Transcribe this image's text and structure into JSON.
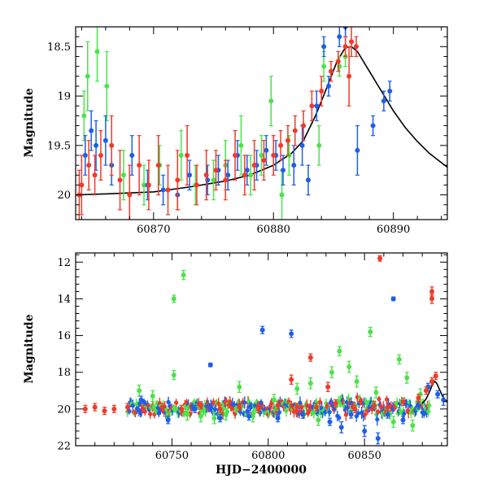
{
  "chart_data": [
    {
      "type": "scatter",
      "title": "",
      "xlabel": "",
      "ylabel": "Magnitude",
      "xlim": [
        60863.5,
        60894.5
      ],
      "ylim": [
        20.25,
        18.3
      ],
      "y_inverted": true,
      "xticks": [
        60870,
        60880,
        60890
      ],
      "yticks": [
        18.5,
        19,
        19.5,
        20
      ],
      "ytick_labels": [
        "18.5",
        "19",
        "19.5",
        "20"
      ],
      "xtick_labels": [
        "60870",
        "60880",
        "60890"
      ],
      "colors": {
        "red": "#f03a2a",
        "blue": "#1e5ee8",
        "green": "#4be34b",
        "model": "#000000"
      },
      "series": [
        {
          "color": "green",
          "points": [
            [
              60864.2,
              19.2,
              0.25
            ],
            [
              60864.5,
              18.8,
              0.35
            ],
            [
              60865.3,
              18.55,
              0.3
            ],
            [
              60866.1,
              18.9,
              0.35
            ],
            [
              60867.5,
              19.8,
              0.25
            ],
            [
              60869.2,
              19.9,
              0.2
            ],
            [
              60870.5,
              19.7,
              0.2
            ],
            [
              60872.3,
              19.6,
              0.25
            ],
            [
              60873.5,
              19.9,
              0.2
            ],
            [
              60875.0,
              19.85,
              0.2
            ],
            [
              60876.0,
              19.7,
              0.25
            ],
            [
              60877.3,
              19.5,
              0.3
            ],
            [
              60878.1,
              19.8,
              0.2
            ],
            [
              60879.0,
              19.6,
              0.2
            ],
            [
              60879.8,
              19.05,
              0.25
            ],
            [
              60880.7,
              20.0,
              0.25
            ],
            [
              60881.3,
              19.6,
              0.2
            ],
            [
              60883.8,
              19.5,
              0.2
            ],
            [
              60884.2,
              18.7,
              0.15
            ],
            [
              60885.5,
              18.7,
              0.1
            ],
            [
              60886.0,
              18.6,
              0.1
            ]
          ]
        },
        {
          "color": "blue",
          "points": [
            [
              60864.3,
              19.6,
              0.2
            ],
            [
              60864.8,
              19.35,
              0.2
            ],
            [
              60865.2,
              19.5,
              0.25
            ],
            [
              60866.0,
              19.45,
              0.25
            ],
            [
              60866.5,
              19.7,
              0.2
            ],
            [
              60868.2,
              19.6,
              0.2
            ],
            [
              60869.5,
              19.9,
              0.15
            ],
            [
              60870.8,
              19.95,
              0.15
            ],
            [
              60872.0,
              20.0,
              0.15
            ],
            [
              60873.0,
              19.8,
              0.15
            ],
            [
              60874.5,
              19.85,
              0.15
            ],
            [
              60875.4,
              19.75,
              0.15
            ],
            [
              60876.2,
              19.8,
              0.15
            ],
            [
              60877.0,
              19.6,
              0.15
            ],
            [
              60877.8,
              19.75,
              0.15
            ],
            [
              60878.6,
              19.7,
              0.15
            ],
            [
              60879.4,
              19.55,
              0.15
            ],
            [
              60880.2,
              19.6,
              0.15
            ],
            [
              60880.8,
              19.75,
              0.15
            ],
            [
              60881.7,
              19.7,
              0.2
            ],
            [
              60882.4,
              19.5,
              0.2
            ],
            [
              60882.9,
              19.85,
              0.15
            ],
            [
              60883.6,
              19.1,
              0.15
            ],
            [
              60884.2,
              18.5,
              0.1
            ],
            [
              60884.6,
              18.9,
              0.1
            ],
            [
              60885.5,
              18.4,
              0.1
            ],
            [
              60886.0,
              18.3,
              0.1
            ],
            [
              60887.0,
              19.55,
              0.25
            ],
            [
              60888.3,
              19.3,
              0.1
            ],
            [
              60889.2,
              19.05,
              0.1
            ],
            [
              60889.7,
              18.95,
              0.1
            ]
          ]
        },
        {
          "color": "red",
          "points": [
            [
              60863.8,
              20.0,
              0.25
            ],
            [
              60864.0,
              19.9,
              0.3
            ],
            [
              60864.6,
              19.7,
              0.25
            ],
            [
              60865.1,
              19.8,
              0.2
            ],
            [
              60865.6,
              19.6,
              0.25
            ],
            [
              60866.5,
              19.5,
              0.3
            ],
            [
              60867.2,
              19.85,
              0.3
            ],
            [
              60868.0,
              20.0,
              0.3
            ],
            [
              60868.8,
              19.7,
              0.3
            ],
            [
              60869.6,
              19.9,
              0.25
            ],
            [
              60870.4,
              19.7,
              0.3
            ],
            [
              60871.2,
              19.95,
              0.25
            ],
            [
              60872.0,
              19.85,
              0.3
            ],
            [
              60872.8,
              19.6,
              0.3
            ],
            [
              60873.6,
              19.9,
              0.2
            ],
            [
              60874.4,
              19.8,
              0.25
            ],
            [
              60875.2,
              19.75,
              0.2
            ],
            [
              60876.0,
              19.85,
              0.2
            ],
            [
              60876.8,
              19.6,
              0.25
            ],
            [
              60877.6,
              19.8,
              0.2
            ],
            [
              60878.4,
              19.7,
              0.25
            ],
            [
              60879.2,
              19.65,
              0.2
            ],
            [
              60880.0,
              19.6,
              0.2
            ],
            [
              60880.6,
              19.5,
              0.15
            ],
            [
              60881.2,
              19.45,
              0.15
            ],
            [
              60881.8,
              19.35,
              0.15
            ],
            [
              60882.5,
              19.3,
              0.15
            ],
            [
              60883.2,
              19.1,
              0.15
            ],
            [
              60884.0,
              18.95,
              0.15
            ],
            [
              60884.8,
              18.75,
              0.1
            ],
            [
              60885.4,
              18.65,
              0.1
            ],
            [
              60886.0,
              18.5,
              0.1
            ],
            [
              60886.5,
              18.45,
              0.15
            ],
            [
              60886.9,
              18.5,
              0.1
            ],
            [
              60886.3,
              18.8,
              0.3
            ]
          ]
        }
      ],
      "model_curve": {
        "color": "model",
        "points": [
          [
            60863.5,
            20.0
          ],
          [
            60866,
            19.99
          ],
          [
            60870,
            19.97
          ],
          [
            60873,
            19.92
          ],
          [
            60876,
            19.86
          ],
          [
            60878,
            19.8
          ],
          [
            60880,
            19.7
          ],
          [
            60881.5,
            19.58
          ],
          [
            60882.5,
            19.45
          ],
          [
            60883.5,
            19.2
          ],
          [
            60884.5,
            18.9
          ],
          [
            60885.3,
            18.65
          ],
          [
            60886.0,
            18.51
          ],
          [
            60886.5,
            18.5
          ],
          [
            60887.0,
            18.55
          ],
          [
            60888.0,
            18.75
          ],
          [
            60889.0,
            18.95
          ],
          [
            60890.0,
            19.15
          ],
          [
            60891.0,
            19.32
          ],
          [
            60892.0,
            19.46
          ],
          [
            60893.0,
            19.58
          ],
          [
            60894.5,
            19.72
          ]
        ]
      }
    },
    {
      "type": "scatter",
      "title": "",
      "xlabel": "HJD−2400000",
      "ylabel": "Magnitude",
      "xlim": [
        60700,
        60893
      ],
      "ylim": [
        22,
        11.5
      ],
      "y_inverted": true,
      "xticks": [
        60750,
        60800,
        60850
      ],
      "yticks": [
        12,
        14,
        16,
        18,
        20,
        22
      ],
      "ytick_labels": [
        "12",
        "14",
        "16",
        "18",
        "20",
        "22"
      ],
      "xtick_labels": [
        "60750",
        "60800",
        "60850"
      ],
      "colors": {
        "red": "#f03a2a",
        "blue": "#1e5ee8",
        "green": "#4be34b",
        "model": "#000000"
      },
      "series": [
        {
          "color": "green",
          "points": [
            [
              60751,
              14.0,
              0.2
            ],
            [
              60751,
              18.15,
              0.25
            ],
            [
              60756,
              12.7,
              0.25
            ],
            [
              60733,
              19.0,
              0.3
            ],
            [
              60740,
              19.3,
              0.3
            ],
            [
              60748,
              20.5,
              0.3
            ],
            [
              60758,
              20.3,
              0.3
            ],
            [
              60765,
              20.4,
              0.3
            ],
            [
              60772,
              20.5,
              0.3
            ],
            [
              60778,
              20.3,
              0.3
            ],
            [
              60785,
              18.8,
              0.3
            ],
            [
              60792,
              20.4,
              0.3
            ],
            [
              60803,
              19.5,
              0.3
            ],
            [
              60815,
              18.9,
              0.3
            ],
            [
              60822,
              18.6,
              0.3
            ],
            [
              60826,
              20.6,
              0.3
            ],
            [
              60833,
              18.0,
              0.3
            ],
            [
              60837,
              16.85,
              0.25
            ],
            [
              60842,
              17.7,
              0.3
            ],
            [
              60846,
              18.5,
              0.3
            ],
            [
              60853,
              15.8,
              0.25
            ],
            [
              60856,
              19.1,
              0.3
            ],
            [
              60865,
              20.7,
              0.3
            ],
            [
              60868,
              17.3,
              0.25
            ],
            [
              60872,
              18.3,
              0.3
            ],
            [
              60875,
              20.9,
              0.3
            ],
            [
              60879,
              19.2,
              0.3
            ]
          ]
        },
        {
          "color": "blue",
          "points": [
            [
              60770,
              17.6,
              0.1
            ],
            [
              60797,
              15.7,
              0.2
            ],
            [
              60812,
              15.9,
              0.2
            ],
            [
              60865,
              14.0,
              0.1
            ],
            [
              60734,
              19.5,
              0.2
            ],
            [
              60748,
              20.6,
              0.2
            ],
            [
              60762,
              20.0,
              0.2
            ],
            [
              60775,
              20.5,
              0.2
            ],
            [
              60790,
              20.4,
              0.2
            ],
            [
              60805,
              20.5,
              0.2
            ],
            [
              60818,
              20.3,
              0.2
            ],
            [
              60832,
              20.7,
              0.2
            ],
            [
              60838,
              21.0,
              0.3
            ],
            [
              60843,
              20.3,
              0.2
            ],
            [
              60850,
              21.2,
              0.3
            ],
            [
              60857,
              21.6,
              0.3
            ],
            [
              60862,
              20.3,
              0.2
            ],
            [
              60870,
              20.6,
              0.2
            ],
            [
              60878,
              19.8,
              0.2
            ],
            [
              60883,
              18.8,
              0.2
            ],
            [
              60888,
              19.2,
              0.2
            ],
            [
              60891,
              19.5,
              0.3
            ]
          ]
        },
        {
          "color": "red",
          "points": [
            [
              60858,
              11.8,
              0.15
            ],
            [
              60885,
              13.6,
              0.25
            ],
            [
              60885,
              14.0,
              0.25
            ],
            [
              60822,
              17.2,
              0.2
            ],
            [
              60812,
              18.4,
              0.25
            ],
            [
              60831,
              18.8,
              0.25
            ],
            [
              60705,
              20.0,
              0.2
            ],
            [
              60710,
              19.9,
              0.2
            ],
            [
              60715,
              20.1,
              0.2
            ],
            [
              60720,
              20.0,
              0.2
            ],
            [
              60727,
              19.9,
              0.2
            ],
            [
              60735,
              20.0,
              0.2
            ],
            [
              60745,
              19.9,
              0.2
            ],
            [
              60755,
              20.0,
              0.2
            ],
            [
              60765,
              19.8,
              0.2
            ],
            [
              60775,
              20.0,
              0.2
            ],
            [
              60785,
              19.9,
              0.2
            ],
            [
              60795,
              20.0,
              0.2
            ],
            [
              60805,
              19.8,
              0.2
            ],
            [
              60815,
              19.9,
              0.2
            ],
            [
              60825,
              19.9,
              0.2
            ],
            [
              60835,
              19.7,
              0.2
            ],
            [
              60845,
              20.0,
              0.2
            ],
            [
              60855,
              19.8,
              0.2
            ],
            [
              60862,
              19.9,
              0.2
            ],
            [
              60870,
              19.6,
              0.2
            ],
            [
              60878,
              19.4,
              0.2
            ],
            [
              60882,
              19.0,
              0.2
            ],
            [
              60885,
              18.5,
              0.2
            ],
            [
              60887,
              18.2,
              0.2
            ]
          ]
        }
      ],
      "band": {
        "x_start": 60727,
        "x_end": 60884,
        "center": 19.95,
        "spread": 0.35,
        "colors": [
          "red",
          "blue",
          "green"
        ]
      },
      "model_curve": {
        "color": "model",
        "points": [
          [
            60880,
            19.7
          ],
          [
            60882,
            19.45
          ],
          [
            60884,
            19.0
          ],
          [
            60885.5,
            18.6
          ],
          [
            60886.5,
            18.5
          ],
          [
            60887.5,
            18.6
          ],
          [
            60889,
            18.95
          ],
          [
            60890.5,
            19.3
          ],
          [
            60892,
            19.5
          ],
          [
            60893,
            19.62
          ]
        ]
      }
    }
  ]
}
